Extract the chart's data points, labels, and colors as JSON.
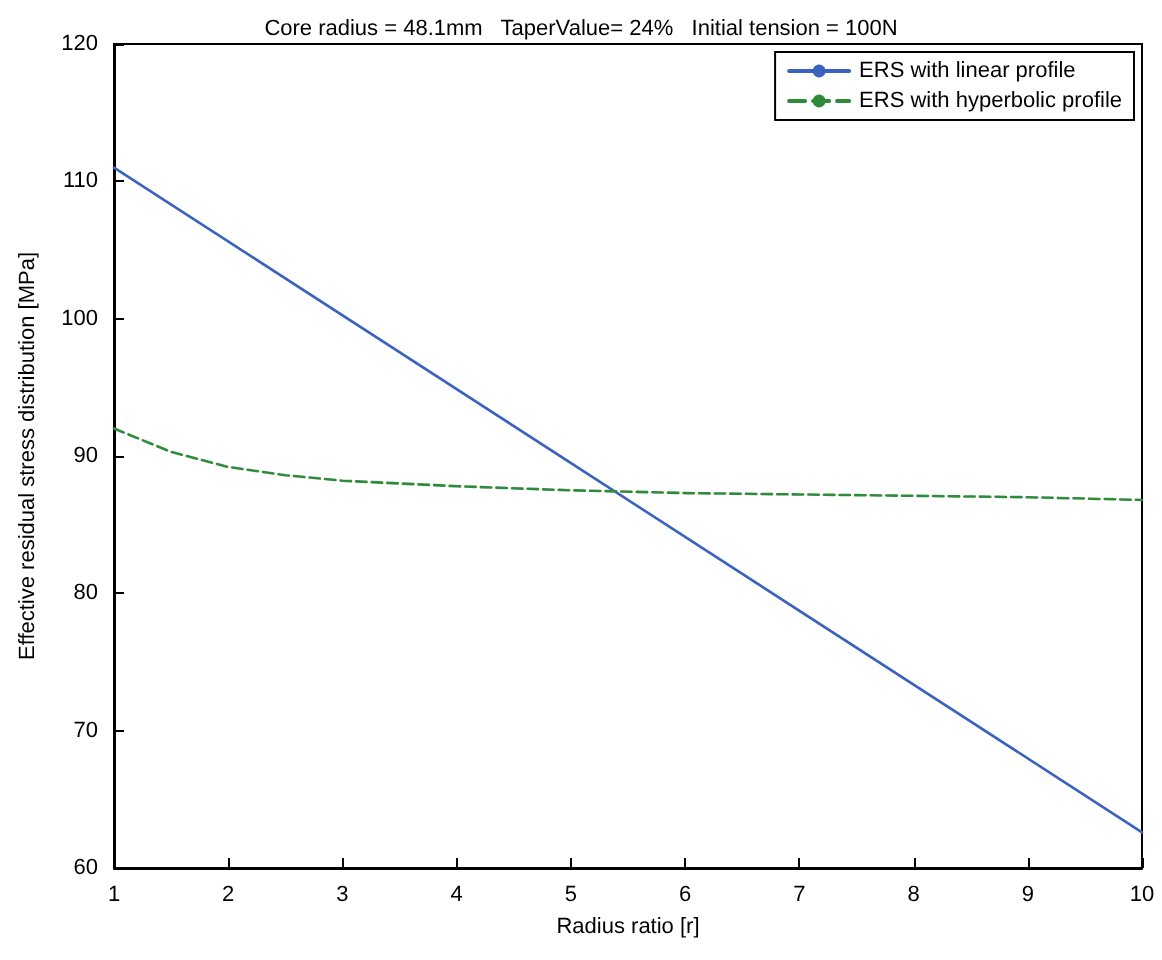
{
  "chart_data": {
    "type": "line",
    "title": "Core radius = 48.1mm   TaperValue= 24%   Initial tension = 100N",
    "xlabel": "Radius ratio [r]",
    "ylabel": "Effective residual stress distribution [MPa]",
    "xlim": [
      1,
      10
    ],
    "xticks": [
      1,
      2,
      3,
      4,
      5,
      6,
      7,
      8,
      9,
      10
    ],
    "ylim": [
      60,
      120
    ],
    "yticks": [
      60,
      70,
      80,
      90,
      100,
      110,
      120
    ],
    "grid": false,
    "legend": "top right",
    "marker": "none",
    "series": [
      {
        "name": "ERS with linear profile",
        "color": "#3a62c0",
        "line_style": "solid",
        "x": [
          1,
          10
        ],
        "values": [
          111,
          62.6
        ]
      },
      {
        "name": "ERS with hyperbolic profile",
        "color": "#2e8b3a",
        "line_style": "dashed",
        "x": [
          1,
          1.5,
          2,
          2.5,
          3,
          4,
          5,
          6,
          7,
          8,
          9,
          10
        ],
        "values": [
          92,
          90.3,
          89.2,
          88.6,
          88.2,
          87.8,
          87.5,
          87.3,
          87.2,
          87.1,
          87,
          86.8
        ]
      }
    ]
  }
}
